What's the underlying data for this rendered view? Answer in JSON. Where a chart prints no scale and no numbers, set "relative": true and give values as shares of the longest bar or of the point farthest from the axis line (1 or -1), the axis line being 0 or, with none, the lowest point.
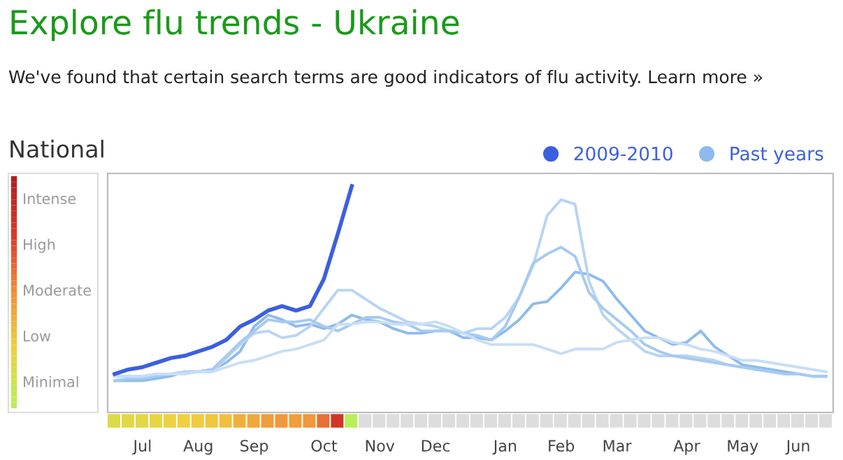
{
  "chart_data": {
    "type": "line",
    "title": "Explore flu trends - Ukraine",
    "subtitle": "We've found that certain search terms are good indicators of flu activity. Learn more »",
    "annotations": [
      "National",
      "Intense",
      "High",
      "Moderate",
      "Low",
      "Minimal"
    ],
    "relative": true,
    "categories": [
      null,
      null,
      "Jul",
      null,
      null,
      null,
      "Aug",
      null,
      null,
      null,
      "Sep",
      null,
      null,
      null,
      null,
      "Oct",
      null,
      null,
      null,
      "Nov",
      null,
      null,
      null,
      "Dec",
      null,
      null,
      null,
      null,
      "Jan",
      null,
      null,
      null,
      "Feb",
      null,
      null,
      null,
      "Mar",
      null,
      null,
      null,
      null,
      "Apr",
      null,
      null,
      null,
      "May",
      null,
      null,
      null,
      "Jun",
      null,
      null
    ],
    "legend": "top right",
    "grid": false,
    "marker": "none",
    "line_style": "solid",
    "series": [
      {
        "name": "Past years",
        "color": "#8dbbed",
        "values": [
          0.14,
          0.14,
          0.14,
          0.15,
          0.16,
          0.18,
          0.18,
          0.19,
          0.22,
          0.27,
          0.38,
          0.43,
          0.41,
          0.38,
          0.39,
          0.37,
          0.39,
          0.43,
          0.41,
          0.4,
          0.37,
          0.35,
          0.35,
          0.36,
          0.36,
          0.33,
          0.33,
          0.32,
          0.36,
          0.41,
          0.48,
          0.49,
          0.55,
          0.62,
          0.61,
          0.58,
          0.5,
          0.43,
          0.36,
          0.33,
          0.3,
          0.31,
          0.36,
          0.29,
          0.25,
          0.21,
          0.2,
          0.19,
          0.18,
          0.17,
          0.16,
          0.16
        ]
      },
      {
        "color": "#b8d4f4",
        "values": [
          0.16,
          0.16,
          0.16,
          0.17,
          0.17,
          0.18,
          0.18,
          0.18,
          0.24,
          0.3,
          0.35,
          0.36,
          0.33,
          0.34,
          0.38,
          0.46,
          0.54,
          0.54,
          0.5,
          0.46,
          0.43,
          0.4,
          0.39,
          0.38,
          0.36,
          0.35,
          0.37,
          0.37,
          0.42,
          0.51,
          0.65,
          0.87,
          0.94,
          0.92,
          0.58,
          0.43,
          0.37,
          0.32,
          0.27,
          0.25,
          0.25,
          0.25,
          0.24,
          0.23,
          0.21,
          0.2,
          0.19,
          0.18,
          0.17,
          0.17,
          0.16,
          0.16
        ]
      },
      {
        "color": "#a6caf1",
        "values": [
          0.14,
          0.15,
          0.15,
          0.16,
          0.17,
          0.17,
          0.18,
          0.19,
          0.25,
          0.31,
          0.36,
          0.41,
          0.4,
          0.4,
          0.41,
          0.38,
          0.36,
          0.39,
          0.42,
          0.42,
          0.4,
          0.39,
          0.36,
          0.36,
          0.36,
          0.35,
          0.34,
          0.32,
          0.38,
          0.51,
          0.66,
          0.7,
          0.73,
          0.69,
          0.53,
          0.46,
          0.41,
          0.36,
          0.3,
          0.27,
          0.25,
          0.24,
          0.23,
          0.22,
          0.21,
          0.2,
          0.19,
          0.18,
          0.17,
          0.17,
          0.16,
          0.16
        ]
      },
      {
        "color": "#c8def6",
        "values": [
          0.16,
          0.16,
          0.16,
          0.17,
          0.17,
          0.17,
          0.18,
          0.18,
          0.2,
          0.22,
          0.23,
          0.25,
          0.27,
          0.28,
          0.3,
          0.32,
          0.39,
          0.39,
          0.4,
          0.4,
          0.39,
          0.39,
          0.39,
          0.4,
          0.38,
          0.35,
          0.32,
          0.3,
          0.3,
          0.3,
          0.3,
          0.28,
          0.26,
          0.28,
          0.28,
          0.28,
          0.31,
          0.32,
          0.33,
          0.33,
          0.31,
          0.3,
          0.28,
          0.27,
          0.25,
          0.23,
          0.23,
          0.22,
          0.21,
          0.2,
          0.19,
          0.18
        ]
      },
      {
        "name": "2009-2010",
        "color": "#3b5fe0",
        "values": [
          0.17,
          0.19,
          0.2,
          0.22,
          0.24,
          0.25,
          0.27,
          0.29,
          0.32,
          0.38,
          0.41,
          0.45,
          0.47,
          0.45,
          0.47,
          0.59,
          0.79,
          1,
          null,
          null,
          null,
          null,
          null,
          null,
          null,
          null,
          null,
          null,
          null,
          null,
          null,
          null,
          null,
          null,
          null,
          null,
          null,
          null,
          null,
          null,
          null,
          null,
          null,
          null,
          null,
          null,
          null,
          null,
          null,
          null,
          null,
          null
        ]
      }
    ]
  }
}
